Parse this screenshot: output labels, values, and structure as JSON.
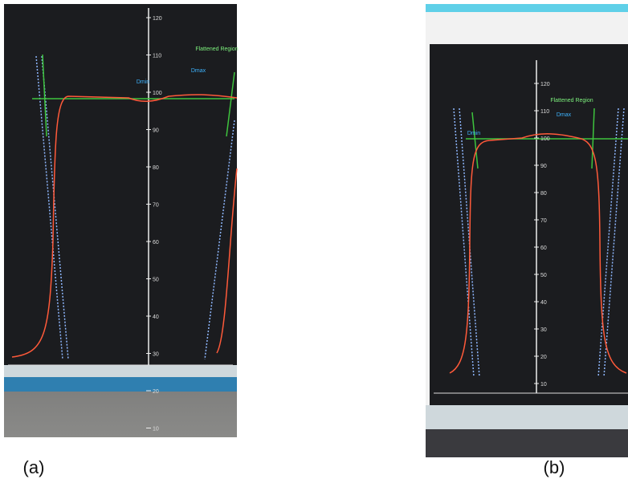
{
  "panels": [
    {
      "caption": "(a)",
      "region_label": "Flattened Region",
      "dmin_label": "Dmin",
      "dmax_label": "Dmax",
      "axis_ticks": [
        120,
        110,
        100,
        90,
        80,
        70,
        60,
        50,
        40,
        30,
        20,
        10
      ]
    },
    {
      "caption": "(b)",
      "region_label": "Flattened Region",
      "dmin_label": "Dmin",
      "dmax_label": "Dmax",
      "axis_ticks": [
        120,
        110,
        100,
        90,
        80,
        70,
        60,
        50,
        40,
        30,
        20,
        10
      ]
    }
  ]
}
